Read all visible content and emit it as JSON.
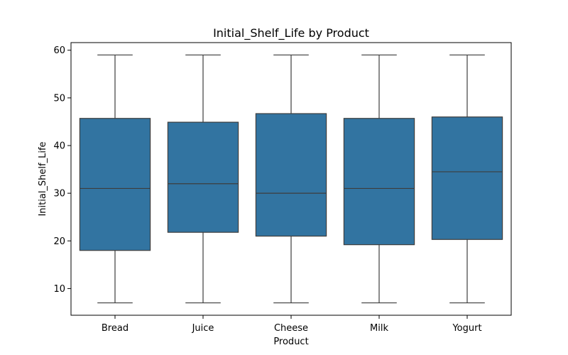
{
  "chart_data": {
    "type": "box",
    "title": "Initial_Shelf_Life by Product",
    "xlabel": "Product",
    "ylabel": "Initial_Shelf_Life",
    "ylim": [
      4.4,
      61.6
    ],
    "yticks": [
      10,
      20,
      30,
      40,
      50,
      60
    ],
    "categories": [
      "Bread",
      "Juice",
      "Cheese",
      "Milk",
      "Yogurt"
    ],
    "boxes": [
      {
        "name": "Bread",
        "min": 7,
        "q1": 18.0,
        "median": 31.0,
        "q3": 45.7,
        "max": 59
      },
      {
        "name": "Juice",
        "min": 7,
        "q1": 21.8,
        "median": 32.0,
        "q3": 44.9,
        "max": 59
      },
      {
        "name": "Cheese",
        "min": 7,
        "q1": 21.0,
        "median": 30.0,
        "q3": 46.7,
        "max": 59
      },
      {
        "name": "Milk",
        "min": 7,
        "q1": 19.2,
        "median": 31.0,
        "q3": 45.7,
        "max": 59
      },
      {
        "name": "Yogurt",
        "min": 7,
        "q1": 20.3,
        "median": 34.5,
        "q3": 46.0,
        "max": 59
      }
    ],
    "colors": {
      "box": "#3274a1",
      "line": "#3d3d3d",
      "axis": "#000000"
    }
  }
}
